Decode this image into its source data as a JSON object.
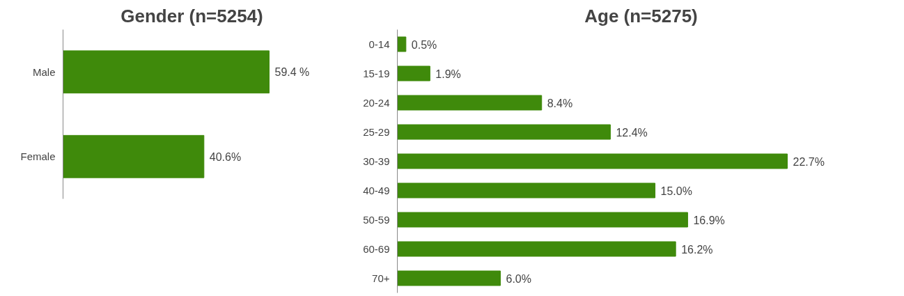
{
  "chart_data": [
    {
      "type": "bar",
      "orientation": "horizontal",
      "title": "Gender (n=5254)",
      "categories": [
        "Male",
        "Female"
      ],
      "values": [
        59.4,
        40.6
      ],
      "color": "#3f8a0b",
      "value_labels": [
        "59.4 %",
        "40.6%"
      ]
    },
    {
      "type": "bar",
      "orientation": "horizontal",
      "title": "Age (n=5275)",
      "categories": [
        "0-14",
        "15-19",
        "20-24",
        "25-29",
        "30-39",
        "40-49",
        "50-59",
        "60-69",
        "70+"
      ],
      "values": [
        0.5,
        1.9,
        8.4,
        12.4,
        22.7,
        15.0,
        16.9,
        16.2,
        6.0
      ],
      "color": "#3f8a0b",
      "value_labels": [
        "0.5%",
        "1.9%",
        "8.4%",
        "12.4%",
        "22.7%",
        "15.0%",
        "16.9%",
        "16.2%",
        "6.0%"
      ]
    }
  ]
}
